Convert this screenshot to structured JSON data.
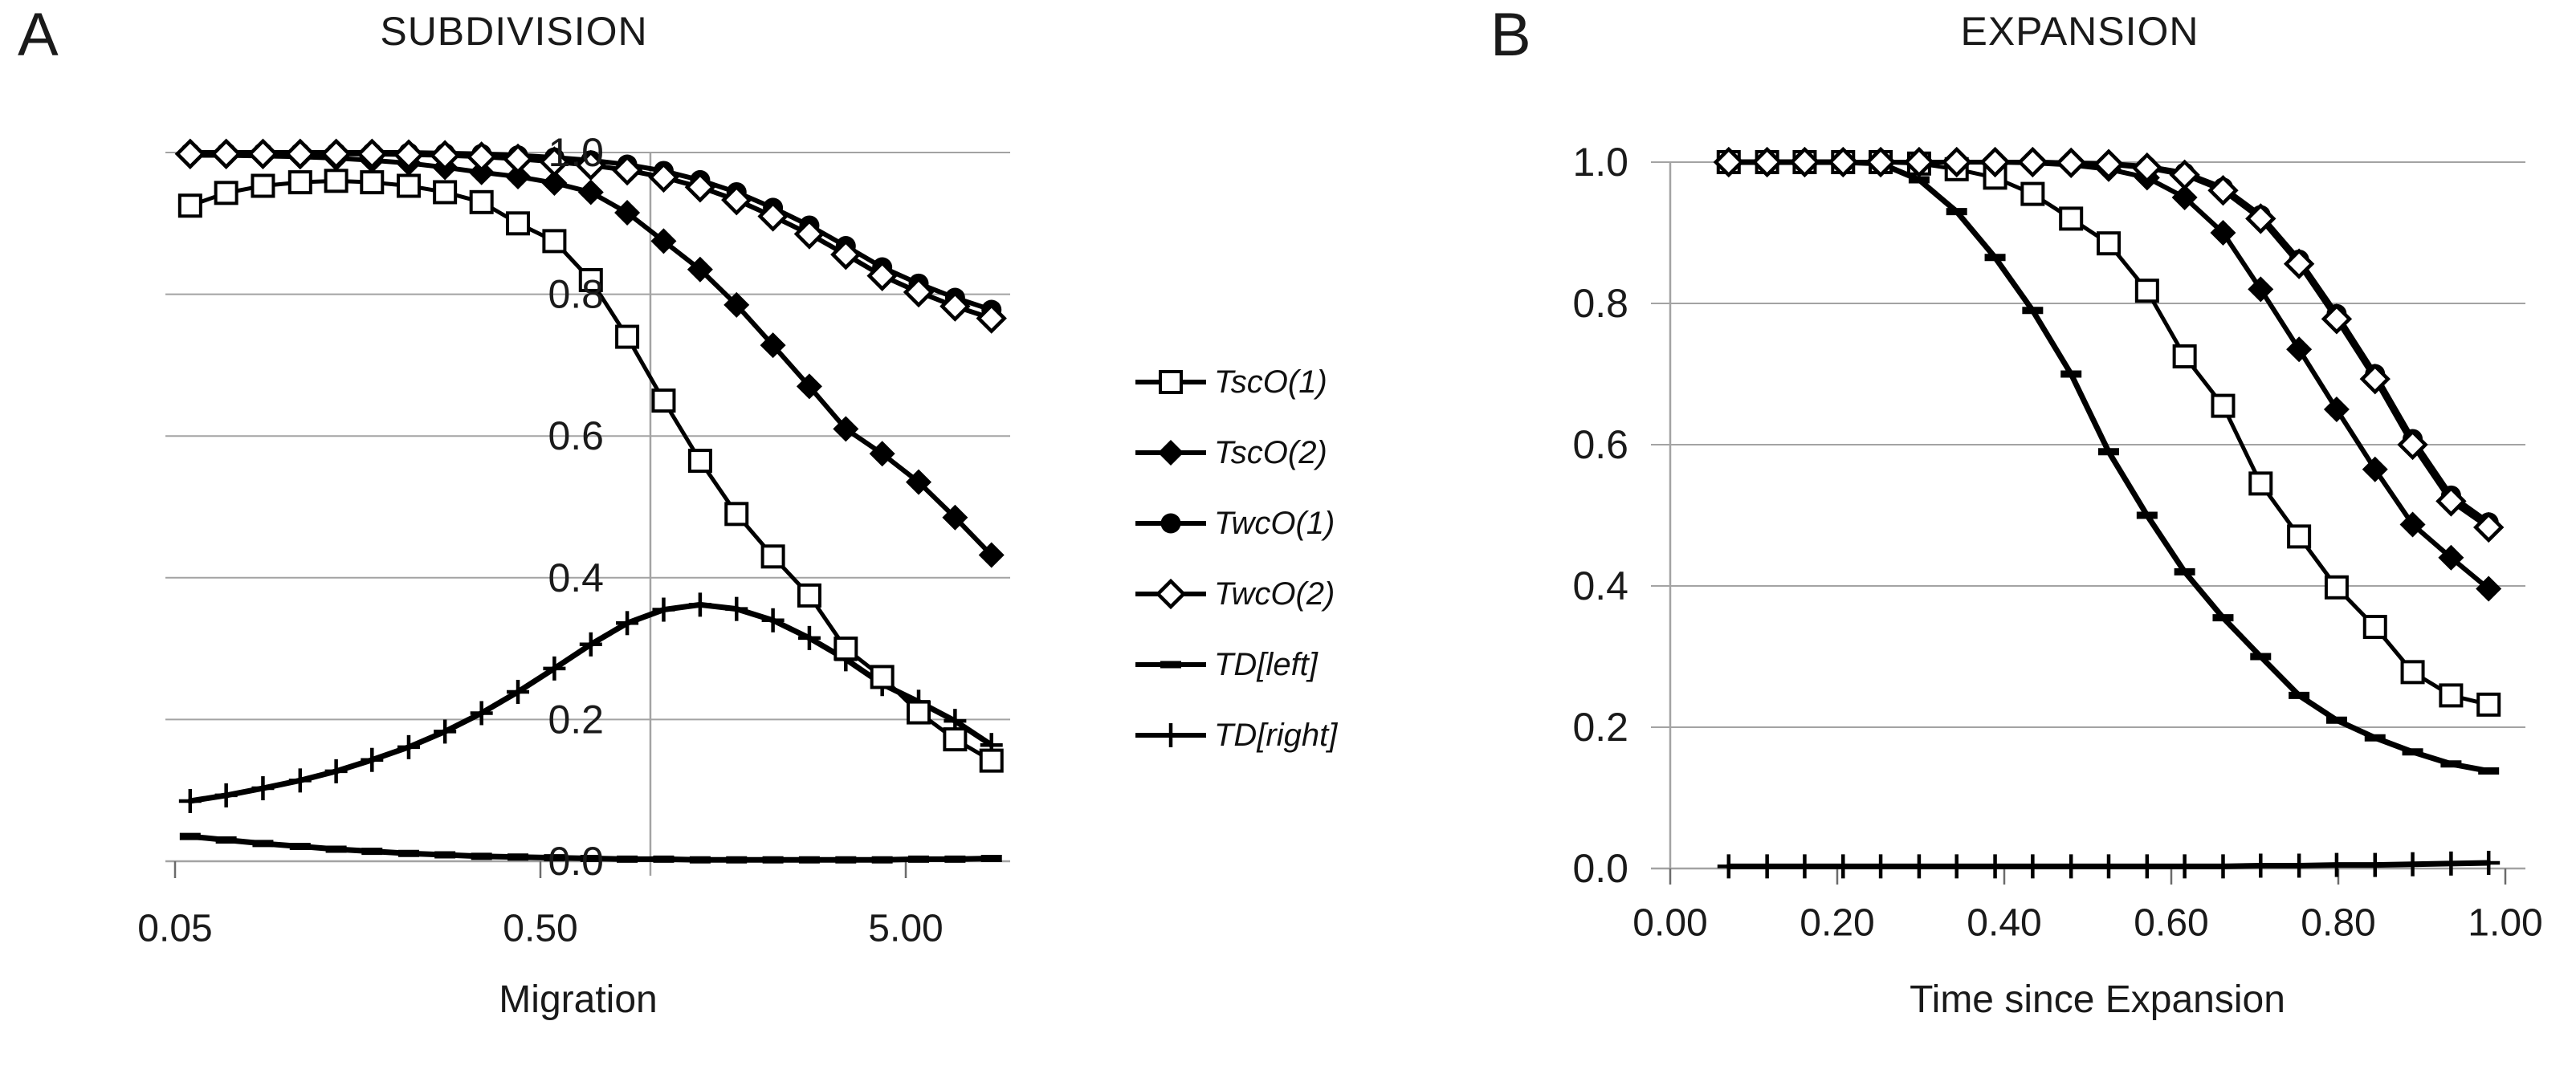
{
  "page": {
    "background": "#ffffff"
  },
  "colors": {
    "series_line": "#000000",
    "grid_line": "#a3a3a3",
    "text": "#1a1a1a"
  },
  "panels": {
    "a": {
      "letter": "A",
      "title": "SUBDIVISION",
      "xlabel": "Migration"
    },
    "b": {
      "letter": "B",
      "title": "EXPANSION",
      "xlabel": "Time since Expansion"
    }
  },
  "legend": {
    "items": [
      {
        "label": "TscO(1)",
        "marker": "open-square"
      },
      {
        "label": "TscO(2)",
        "marker": "filled-diamond"
      },
      {
        "label": "TwcO(1)",
        "marker": "filled-circle"
      },
      {
        "label": "TwcO(2)",
        "marker": "open-diamond"
      },
      {
        "label": "TD[left]",
        "marker": "dash"
      },
      {
        "label": "TD[right]",
        "marker": "plus"
      }
    ]
  },
  "chart_data": [
    {
      "panel": "A",
      "type": "line",
      "title": "SUBDIVISION",
      "xlabel": "Migration",
      "x_scale": "log",
      "x_range": [
        0.05,
        9.9
      ],
      "y_range": [
        0.0,
        1.0
      ],
      "grid": "horizontal",
      "y_axis_cross_x": 1.0,
      "x_tick_labels": [
        {
          "value": 0.05,
          "label": "0.05"
        },
        {
          "value": 0.5,
          "label": "0.50"
        },
        {
          "value": 5.0,
          "label": "5.00"
        }
      ],
      "y_tick_labels": [
        {
          "value": 1.0,
          "label": "1.0"
        },
        {
          "value": 0.8,
          "label": "0.8"
        },
        {
          "value": 0.6,
          "label": "0.6"
        },
        {
          "value": 0.4,
          "label": "0.4"
        },
        {
          "value": 0.2,
          "label": "0.2"
        },
        {
          "value": 0.0,
          "label": "0.0"
        }
      ],
      "x": [
        0.055,
        0.069,
        0.087,
        0.11,
        0.138,
        0.173,
        0.218,
        0.274,
        0.345,
        0.434,
        0.546,
        0.687,
        0.864,
        1.087,
        1.368,
        1.721,
        2.165,
        2.723,
        3.426,
        4.31,
        5.422,
        6.821,
        8.581
      ],
      "series": [
        {
          "name": "TD[left]",
          "marker": "dash",
          "line_width": 7,
          "values": [
            0.035,
            0.03,
            0.025,
            0.021,
            0.017,
            0.014,
            0.011,
            0.009,
            0.007,
            0.006,
            0.005,
            0.004,
            0.003,
            0.003,
            0.002,
            0.002,
            0.002,
            0.002,
            0.002,
            0.002,
            0.003,
            0.003,
            0.004
          ]
        },
        {
          "name": "TD[right]",
          "marker": "plus",
          "line_width": 7,
          "values": [
            0.085,
            0.093,
            0.103,
            0.114,
            0.127,
            0.143,
            0.161,
            0.183,
            0.209,
            0.239,
            0.272,
            0.306,
            0.336,
            0.355,
            0.362,
            0.356,
            0.34,
            0.315,
            0.285,
            0.25,
            0.225,
            0.198,
            0.164
          ]
        },
        {
          "name": "TscO(1)",
          "marker": "open-square",
          "line_width": 5,
          "values": [
            0.925,
            0.943,
            0.953,
            0.958,
            0.96,
            0.958,
            0.953,
            0.944,
            0.93,
            0.9,
            0.875,
            0.82,
            0.74,
            0.65,
            0.565,
            0.49,
            0.43,
            0.375,
            0.3,
            0.26,
            0.21,
            0.172,
            0.142
          ]
        },
        {
          "name": "TscO(2)",
          "marker": "filled-diamond",
          "line_width": 6,
          "values": [
            0.996,
            0.996,
            0.995,
            0.994,
            0.992,
            0.989,
            0.985,
            0.979,
            0.972,
            0.966,
            0.957,
            0.944,
            0.915,
            0.875,
            0.835,
            0.785,
            0.728,
            0.67,
            0.61,
            0.575,
            0.535,
            0.485,
            0.432
          ]
        },
        {
          "name": "TwcO(1)",
          "marker": "filled-circle",
          "line_width": 6,
          "values": [
            1.0,
            1.0,
            1.0,
            1.0,
            1.0,
            1.0,
            1.0,
            0.999,
            0.998,
            0.996,
            0.993,
            0.989,
            0.983,
            0.974,
            0.961,
            0.944,
            0.922,
            0.897,
            0.868,
            0.838,
            0.815,
            0.795,
            0.778
          ]
        },
        {
          "name": "TwcO(2)",
          "marker": "open-diamond",
          "line_width": 6,
          "values": [
            0.998,
            0.998,
            0.998,
            0.998,
            0.998,
            0.998,
            0.997,
            0.996,
            0.994,
            0.991,
            0.987,
            0.982,
            0.975,
            0.965,
            0.951,
            0.933,
            0.91,
            0.885,
            0.856,
            0.826,
            0.803,
            0.783,
            0.766
          ]
        }
      ]
    },
    {
      "panel": "B",
      "type": "line",
      "title": "EXPANSION",
      "xlabel": "Time since Expansion",
      "x_scale": "linear",
      "x_range": [
        0.0,
        1.02
      ],
      "y_range": [
        0.0,
        1.0
      ],
      "grid": "horizontal",
      "y_axis_cross_x": 0.0,
      "x_tick_labels": [
        {
          "value": 0.0,
          "label": "0.00"
        },
        {
          "value": 0.2,
          "label": "0.20"
        },
        {
          "value": 0.4,
          "label": "0.40"
        },
        {
          "value": 0.6,
          "label": "0.60"
        },
        {
          "value": 0.8,
          "label": "0.80"
        },
        {
          "value": 1.0,
          "label": "1.00"
        }
      ],
      "y_tick_labels": [
        {
          "value": 1.0,
          "label": "1.0"
        },
        {
          "value": 0.8,
          "label": "0.8"
        },
        {
          "value": 0.6,
          "label": "0.6"
        },
        {
          "value": 0.4,
          "label": "0.4"
        },
        {
          "value": 0.2,
          "label": "0.2"
        },
        {
          "value": 0.0,
          "label": "0.0"
        }
      ],
      "x": [
        0.07,
        0.116,
        0.161,
        0.207,
        0.252,
        0.298,
        0.343,
        0.389,
        0.434,
        0.48,
        0.525,
        0.571,
        0.616,
        0.662,
        0.707,
        0.753,
        0.798,
        0.844,
        0.889,
        0.935,
        0.98
      ],
      "series": [
        {
          "name": "TD[right]",
          "marker": "plus",
          "line_width": 7,
          "values": [
            0.003,
            0.003,
            0.003,
            0.003,
            0.003,
            0.003,
            0.003,
            0.003,
            0.003,
            0.003,
            0.003,
            0.003,
            0.003,
            0.003,
            0.004,
            0.004,
            0.005,
            0.005,
            0.006,
            0.007,
            0.008
          ]
        },
        {
          "name": "TD[left]",
          "marker": "dash",
          "line_width": 7,
          "values": [
            1.0,
            1.0,
            1.0,
            1.0,
            0.998,
            0.975,
            0.93,
            0.865,
            0.79,
            0.7,
            0.59,
            0.5,
            0.42,
            0.355,
            0.3,
            0.245,
            0.21,
            0.185,
            0.165,
            0.148,
            0.138
          ]
        },
        {
          "name": "TscO(1)",
          "marker": "open-square",
          "line_width": 5,
          "values": [
            1.0,
            1.0,
            1.0,
            1.0,
            1.0,
            0.998,
            0.99,
            0.978,
            0.955,
            0.92,
            0.885,
            0.818,
            0.725,
            0.655,
            0.545,
            0.47,
            0.398,
            0.342,
            0.278,
            0.245,
            0.232
          ]
        },
        {
          "name": "TscO(2)",
          "marker": "filled-diamond",
          "line_width": 6,
          "values": [
            1.0,
            1.0,
            1.0,
            1.0,
            1.0,
            1.0,
            1.0,
            1.0,
            0.999,
            0.996,
            0.99,
            0.978,
            0.95,
            0.9,
            0.82,
            0.735,
            0.65,
            0.565,
            0.487,
            0.44,
            0.396
          ]
        },
        {
          "name": "TwcO(1)",
          "marker": "filled-circle",
          "line_width": 6,
          "values": [
            1.0,
            1.0,
            1.0,
            1.0,
            1.0,
            1.0,
            1.0,
            1.0,
            1.0,
            0.999,
            0.998,
            0.994,
            0.985,
            0.964,
            0.925,
            0.862,
            0.785,
            0.7,
            0.608,
            0.528,
            0.49
          ]
        },
        {
          "name": "TwcO(2)",
          "marker": "open-diamond",
          "line_width": 6,
          "values": [
            1.0,
            1.0,
            1.0,
            1.0,
            1.0,
            1.0,
            1.0,
            1.0,
            1.0,
            0.999,
            0.997,
            0.992,
            0.982,
            0.96,
            0.92,
            0.856,
            0.778,
            0.693,
            0.6,
            0.52,
            0.483
          ]
        }
      ]
    }
  ]
}
